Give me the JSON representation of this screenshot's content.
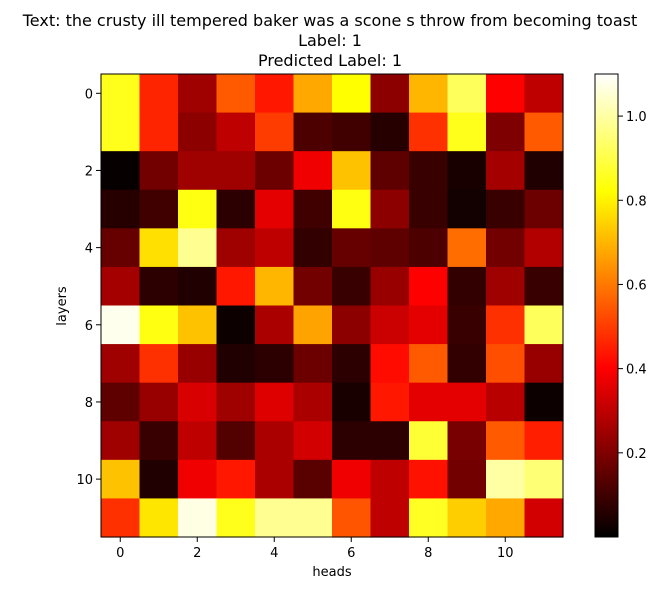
{
  "chart_data": {
    "type": "heatmap",
    "title_lines": [
      "Text: the crusty ill tempered baker was a scone s throw from becoming toast",
      "Label: 1",
      "Predicted Label: 1"
    ],
    "xlabel": "heads",
    "ylabel": "layers",
    "colormap": "hot",
    "x_ticks": [
      0,
      2,
      4,
      6,
      8,
      10
    ],
    "y_ticks": [
      0,
      2,
      4,
      6,
      8,
      10
    ],
    "colorbar_ticks": [
      0.2,
      0.4,
      0.6,
      0.8,
      1.0
    ],
    "colorbar_tick_labels": [
      "0.2",
      "0.4",
      "0.6",
      "0.8",
      "1.0"
    ],
    "vmin": 0.0,
    "vmax": 1.1,
    "values": [
      [
        0.85,
        0.46,
        0.25,
        0.55,
        0.44,
        0.68,
        0.82,
        0.22,
        0.7,
        0.92,
        0.4,
        0.3
      ],
      [
        0.85,
        0.46,
        0.22,
        0.3,
        0.5,
        0.12,
        0.1,
        0.06,
        0.48,
        0.85,
        0.2,
        0.55
      ],
      [
        0.01,
        0.18,
        0.25,
        0.25,
        0.17,
        0.38,
        0.72,
        0.15,
        0.09,
        0.04,
        0.26,
        0.05
      ],
      [
        0.06,
        0.1,
        0.84,
        0.07,
        0.36,
        0.1,
        0.84,
        0.22,
        0.09,
        0.03,
        0.09,
        0.17
      ],
      [
        0.16,
        0.77,
        0.98,
        0.25,
        0.3,
        0.08,
        0.16,
        0.15,
        0.12,
        0.58,
        0.18,
        0.28
      ],
      [
        0.26,
        0.07,
        0.05,
        0.44,
        0.7,
        0.18,
        0.09,
        0.24,
        0.4,
        0.08,
        0.25,
        0.09
      ],
      [
        1.08,
        0.84,
        0.72,
        0.02,
        0.27,
        0.67,
        0.22,
        0.32,
        0.36,
        0.09,
        0.48,
        0.92
      ],
      [
        0.25,
        0.48,
        0.24,
        0.05,
        0.07,
        0.17,
        0.07,
        0.42,
        0.55,
        0.08,
        0.53,
        0.24
      ],
      [
        0.15,
        0.24,
        0.34,
        0.25,
        0.35,
        0.27,
        0.04,
        0.44,
        0.36,
        0.36,
        0.29,
        0.02
      ],
      [
        0.25,
        0.09,
        0.3,
        0.13,
        0.27,
        0.33,
        0.07,
        0.07,
        0.88,
        0.19,
        0.55,
        0.45
      ],
      [
        0.72,
        0.05,
        0.38,
        0.44,
        0.27,
        0.14,
        0.38,
        0.3,
        0.43,
        0.18,
        1.0,
        0.95
      ],
      [
        0.48,
        0.78,
        1.07,
        0.85,
        0.98,
        0.98,
        0.54,
        0.3,
        0.86,
        0.74,
        0.68,
        0.33
      ]
    ]
  }
}
